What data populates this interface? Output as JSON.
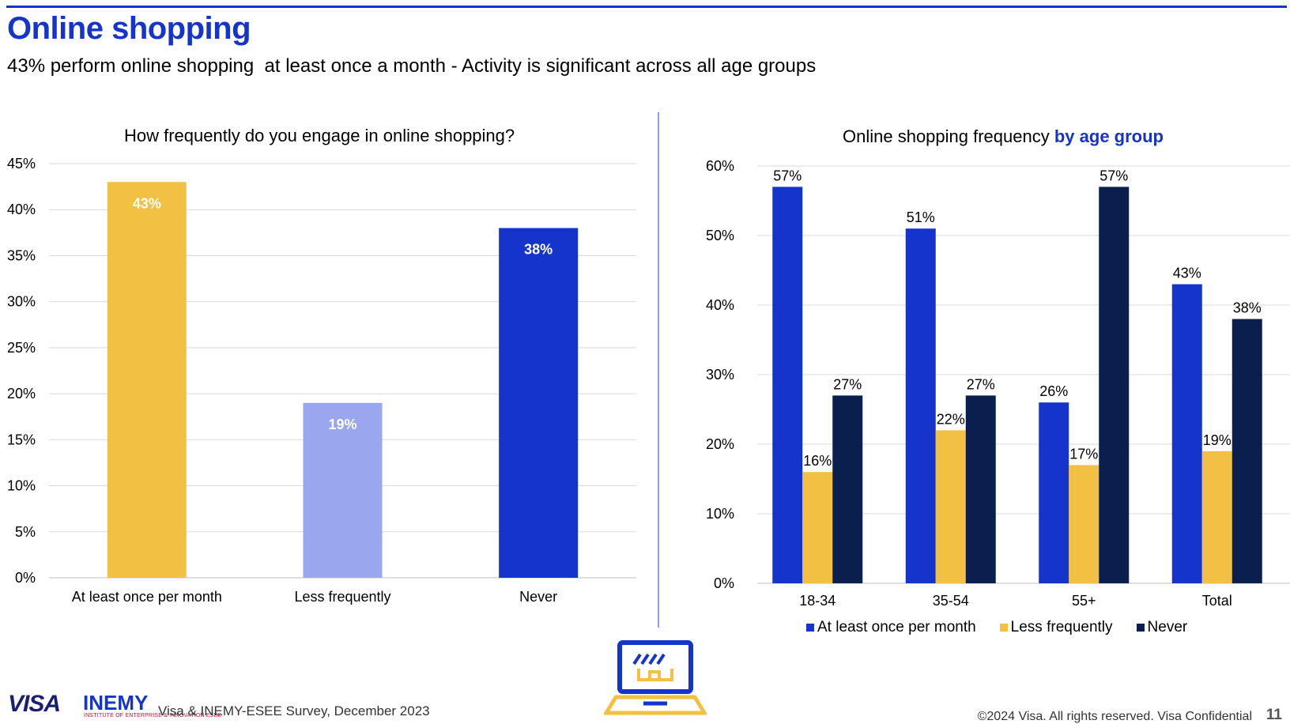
{
  "page": {
    "title": "Online shopping",
    "subtitle": "43% perform online shopping  at least once a month - Activity is significant across all age groups",
    "source": "Visa & INEMY-ESEE Survey, December 2023",
    "copyright": "©2024 Visa. All rights reserved. Visa Confidential",
    "page_number": "11",
    "logos": {
      "visa": "VISA",
      "inemy": "INEMY",
      "inemy_sub": "INSTITUTE OF ENTERPRISE & INNOVATION ESEE"
    }
  },
  "colors": {
    "brand_blue": "#1434cb",
    "yellow": "#f2c144",
    "light_blue": "#9aa7ee",
    "navy": "#0b1f4e"
  },
  "chart_data": [
    {
      "type": "bar",
      "title": "How frequently do you engage in online shopping?",
      "categories": [
        "At least once per month",
        "Less frequently",
        "Never"
      ],
      "values": [
        43,
        19,
        38
      ],
      "value_labels": [
        "43%",
        "19%",
        "38%"
      ],
      "bar_colors": [
        "#f2c144",
        "#9aa7ee",
        "#1434cb"
      ],
      "ylim": [
        0,
        45
      ],
      "yticks": [
        "0%",
        "5%",
        "10%",
        "15%",
        "20%",
        "25%",
        "30%",
        "35%",
        "40%",
        "45%"
      ],
      "grid": true,
      "xlabel": "",
      "ylabel": ""
    },
    {
      "type": "bar",
      "title": "Online shopping frequency",
      "title_accent": "by age group",
      "categories": [
        "18-34",
        "35-54",
        "55+",
        "Total"
      ],
      "series": [
        {
          "name": "At least once per month",
          "values": [
            57,
            51,
            26,
            43
          ],
          "labels": [
            "57%",
            "51%",
            "26%",
            "43%"
          ],
          "color": "#1434cb"
        },
        {
          "name": "Less frequently",
          "values": [
            16,
            22,
            17,
            19
          ],
          "labels": [
            "16%",
            "22%",
            "17%",
            "19%"
          ],
          "color": "#f2c144"
        },
        {
          "name": "Never",
          "values": [
            27,
            27,
            57,
            38
          ],
          "labels": [
            "27%",
            "27%",
            "57%",
            "38%"
          ],
          "color": "#0b1f4e"
        }
      ],
      "ylim": [
        0,
        60
      ],
      "yticks": [
        "0%",
        "10%",
        "20%",
        "30%",
        "40%",
        "50%",
        "60%"
      ],
      "legend": "bottom",
      "grid": true,
      "xlabel": "",
      "ylabel": ""
    }
  ]
}
